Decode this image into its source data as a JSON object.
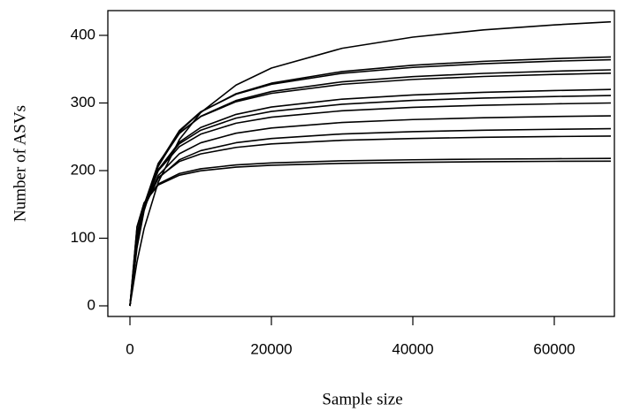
{
  "chart_data": {
    "type": "line",
    "xlabel": "Sample size",
    "ylabel": "Number of ASVs",
    "x": [
      0,
      1000,
      2000,
      4000,
      7000,
      10000,
      15000,
      20000,
      30000,
      40000,
      50000,
      60000,
      68000
    ],
    "series": [
      {
        "color": "#000000",
        "values": [
          0,
          65.3,
          114.3,
          182.8,
          246.1,
          285.7,
          326.5,
          351.6,
          380.9,
          397.4,
          408.1,
          415.5,
          420
        ]
      },
      {
        "color": "#000000",
        "values": [
          0,
          86.0,
          140.7,
          206.3,
          257.9,
          286.6,
          313.7,
          329.3,
          346.5,
          355.8,
          361.6,
          365.6,
          368
        ]
      },
      {
        "color": "#000000",
        "values": [
          0,
          88.8,
          144.0,
          209.1,
          259.4,
          287.0,
          312.9,
          327.6,
          343.9,
          352.6,
          358.1,
          361.8,
          364
        ]
      },
      {
        "color": "#000000",
        "values": [
          0,
          91.1,
          145.8,
          208.2,
          255.1,
          280.3,
          303.7,
          316.9,
          331.3,
          339.0,
          343.8,
          347.0,
          349
        ]
      },
      {
        "color": "#000000",
        "values": [
          0,
          94.3,
          149.3,
          210.7,
          255.9,
          279.8,
          301.9,
          314.2,
          327.6,
          334.8,
          339.2,
          342.2,
          344
        ]
      },
      {
        "color": "#000000",
        "values": [
          0,
          92.3,
          144.4,
          201.3,
          242.2,
          263.7,
          283.1,
          294.0,
          305.7,
          311.9,
          315.8,
          318.4,
          320
        ]
      },
      {
        "color": "#000000",
        "values": [
          0,
          94.7,
          146.4,
          201.3,
          239.8,
          259.7,
          277.6,
          287.5,
          298.1,
          303.8,
          307.3,
          309.6,
          311
        ]
      },
      {
        "color": "#000000",
        "values": [
          0,
          96.8,
          147.5,
          199.8,
          235.6,
          253.9,
          270.1,
          279.0,
          288.5,
          293.6,
          296.7,
          298.7,
          300
        ]
      },
      {
        "color": "#000000",
        "values": [
          0,
          96.4,
          144.6,
          192.9,
          225.0,
          241.1,
          255.3,
          263.0,
          271.2,
          275.5,
          278.2,
          280.0,
          281
        ]
      },
      {
        "color": "#000000",
        "values": [
          0,
          99.5,
          145.2,
          188.5,
          216.1,
          229.5,
          241.2,
          247.5,
          254.2,
          257.6,
          259.7,
          261.1,
          262
        ]
      },
      {
        "color": "#000000",
        "values": [
          0,
          106.7,
          150.7,
          189.8,
          213.5,
          224.7,
          234.3,
          239.4,
          244.8,
          247.5,
          249.2,
          250.4,
          251
        ]
      },
      {
        "color": "#000000",
        "values": [
          0,
          116.3,
          152.3,
          180.3,
          195.7,
          202.7,
          208.4,
          211.4,
          214.5,
          216.0,
          217.0,
          217.6,
          218
        ]
      },
      {
        "color": "#000000",
        "values": [
          0,
          117.1,
          152.1,
          178.7,
          193.2,
          199.7,
          205.1,
          207.9,
          210.7,
          212.2,
          213.1,
          213.7,
          214
        ]
      }
    ],
    "xlim": [
      -3125,
      68500
    ],
    "ylim": [
      -15.7,
      436.6
    ],
    "xticks": [
      0,
      20000,
      40000,
      60000
    ],
    "yticks": [
      0,
      100,
      200,
      300,
      400
    ]
  }
}
